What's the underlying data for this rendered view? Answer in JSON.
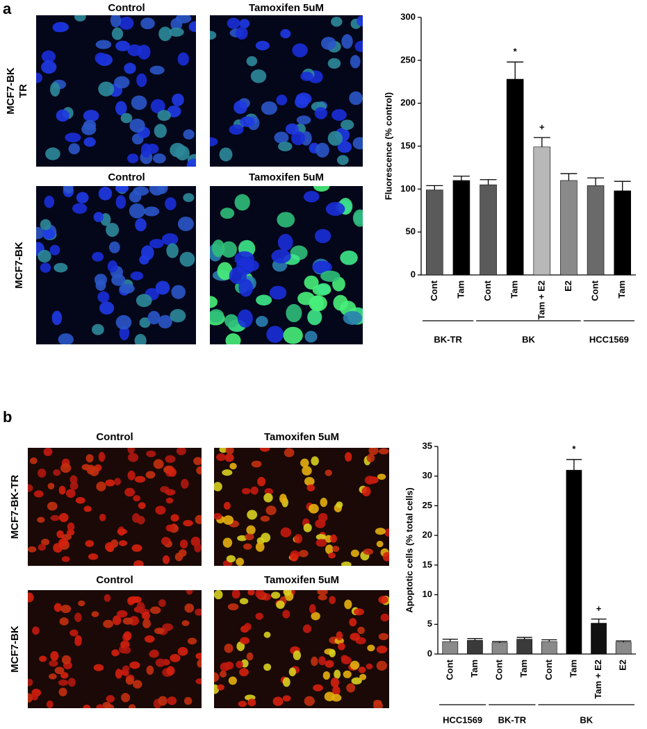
{
  "panels": [
    {
      "label": "a",
      "columns": [
        "Control",
        "Tamoxifen 5uM",
        "Control",
        "Tamoxifen 5uM"
      ],
      "rows": [
        [
          "MCF7-BK",
          "TR"
        ],
        [
          "MCF7-BK"
        ]
      ]
    },
    {
      "label": "b",
      "columns": [
        "Control",
        "Tamoxifen 5uM",
        "Control",
        "Tamoxifen 5uM"
      ],
      "rows": [
        [
          "MCF7-BK-TR"
        ],
        [
          "MCF7-BK"
        ]
      ]
    }
  ],
  "chart_data": [
    {
      "type": "bar",
      "y_label": "Fluorescence (% control)",
      "ylim": [
        0,
        300
      ],
      "yticks": [
        0,
        50,
        100,
        150,
        200,
        250,
        300
      ],
      "groups": [
        {
          "name": "BK-TR",
          "categories": [
            "Cont",
            "Tam"
          ],
          "values": [
            99,
            110
          ],
          "errors": [
            5,
            5
          ],
          "colors": [
            "#5a5a5a",
            "#000000"
          ],
          "annotations": [
            null,
            null
          ]
        },
        {
          "name": "BK",
          "categories": [
            "Cont",
            "Tam",
            "Tam + E2",
            "E2"
          ],
          "values": [
            105,
            228,
            149,
            110
          ],
          "errors": [
            6,
            20,
            11,
            8
          ],
          "colors": [
            "#5a5a5a",
            "#000000",
            "#b8b8b8",
            "#8a8a8a"
          ],
          "annotations": [
            null,
            "*",
            "+",
            null
          ]
        },
        {
          "name": "HCC1569",
          "categories": [
            "Cont",
            "Tam"
          ],
          "values": [
            104,
            98
          ],
          "errors": [
            9,
            11
          ],
          "colors": [
            "#6a6a6a",
            "#000000"
          ],
          "annotations": [
            null,
            null
          ]
        }
      ]
    },
    {
      "type": "bar",
      "y_label": "Apoptotic cells (% total cells)",
      "ylim": [
        0,
        35
      ],
      "yticks": [
        0,
        5,
        10,
        15,
        20,
        25,
        30,
        35
      ],
      "groups": [
        {
          "name": "HCC1569",
          "categories": [
            "Cont",
            "Tam"
          ],
          "values": [
            2.1,
            2.3
          ],
          "errors": [
            0.4,
            0.3
          ],
          "colors": [
            "#8a8a8a",
            "#3a3a3a"
          ],
          "annotations": [
            null,
            null
          ]
        },
        {
          "name": "BK-TR",
          "categories": [
            "Cont",
            "Tam"
          ],
          "values": [
            1.9,
            2.5
          ],
          "errors": [
            0.2,
            0.3
          ],
          "colors": [
            "#8a8a8a",
            "#3a3a3a"
          ],
          "annotations": [
            null,
            null
          ]
        },
        {
          "name": "BK",
          "categories": [
            "Cont",
            "Tam",
            "Tam + E2",
            "E2"
          ],
          "values": [
            2.1,
            31,
            5.2,
            2.0
          ],
          "errors": [
            0.3,
            1.8,
            0.7,
            0.2
          ],
          "colors": [
            "#8a8a8a",
            "#000000",
            "#111111",
            "#8a8a8a"
          ],
          "annotations": [
            null,
            "*",
            "+",
            null
          ]
        }
      ]
    }
  ]
}
